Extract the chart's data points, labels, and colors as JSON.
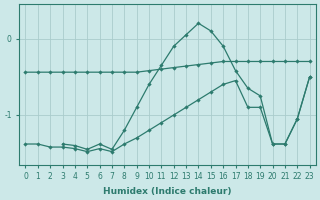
{
  "xlabel": "Humidex (Indice chaleur)",
  "bg_color": "#cce8e8",
  "grid_color": "#aacccc",
  "line_color": "#2d7b6e",
  "xlim": [
    -0.5,
    23.5
  ],
  "ylim": [
    -1.65,
    0.45
  ],
  "yticks": [
    0,
    -1
  ],
  "ytick_labels": [
    "0",
    "-1"
  ],
  "xticks": [
    0,
    1,
    2,
    3,
    4,
    5,
    6,
    7,
    8,
    9,
    10,
    11,
    12,
    13,
    14,
    15,
    16,
    17,
    18,
    19,
    20,
    21,
    22,
    23
  ],
  "series": [
    {
      "x": [
        0,
        1,
        2,
        3,
        4,
        5,
        6,
        7,
        8,
        9,
        10,
        11,
        12,
        13,
        14,
        15,
        16,
        17,
        18,
        19,
        20,
        21,
        22,
        23
      ],
      "y": [
        -0.44,
        -0.44,
        -0.44,
        -0.44,
        -0.44,
        -0.44,
        -0.44,
        -0.44,
        -0.44,
        -0.44,
        -0.42,
        -0.4,
        -0.38,
        -0.36,
        -0.34,
        -0.32,
        -0.3,
        -0.3,
        -0.3,
        -0.3,
        -0.3,
        -0.3,
        -0.3,
        -0.3
      ]
    },
    {
      "x": [
        3,
        4,
        5,
        6,
        7,
        8,
        9,
        10,
        11,
        12,
        13,
        14,
        15,
        16,
        17,
        18,
        19,
        20,
        21,
        22,
        23
      ],
      "y": [
        -1.38,
        -1.4,
        -1.45,
        -1.38,
        -1.45,
        -1.2,
        -0.9,
        -0.6,
        -0.35,
        -0.1,
        0.05,
        0.2,
        0.1,
        -0.1,
        -0.42,
        -0.65,
        -0.75,
        -1.38,
        -1.38,
        -1.05,
        -0.5
      ]
    },
    {
      "x": [
        0,
        1,
        2,
        3,
        4,
        5,
        6,
        7,
        8,
        9,
        10,
        11,
        12,
        13,
        14,
        15,
        16,
        17,
        18,
        19,
        20,
        21,
        22,
        23
      ],
      "y": [
        -1.38,
        -1.38,
        -1.42,
        -1.42,
        -1.44,
        -1.48,
        -1.44,
        -1.48,
        -1.38,
        -1.3,
        -1.2,
        -1.1,
        -1.0,
        -0.9,
        -0.8,
        -0.7,
        -0.6,
        -0.55,
        -0.9,
        -0.9,
        -1.38,
        -1.38,
        -1.05,
        -0.5
      ]
    }
  ]
}
